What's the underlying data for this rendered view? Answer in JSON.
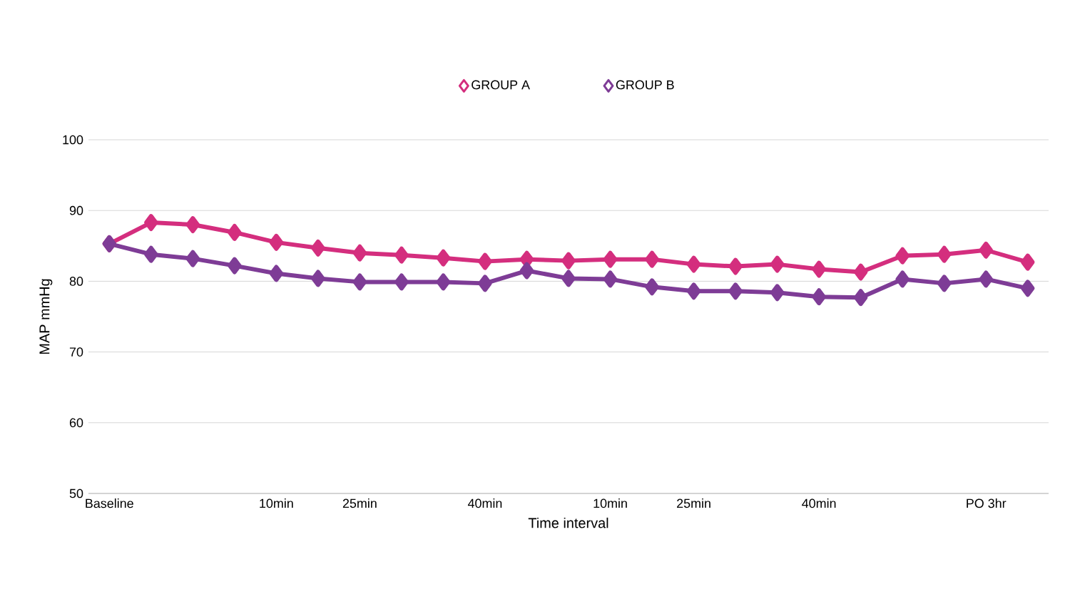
{
  "chart_data": {
    "type": "line",
    "xlabel": "Time interval",
    "ylabel": "MAP mmHg",
    "categories": [
      "Baseline",
      null,
      null,
      null,
      "10min",
      null,
      "25min",
      null,
      null,
      "40min",
      null,
      null,
      "10min",
      null,
      "25min",
      null,
      null,
      "40min",
      null,
      null,
      null,
      "PO 3hr",
      null
    ],
    "series": [
      {
        "name": "GROUP A",
        "color": "#d42e7e",
        "values": [
          85.3,
          88.3,
          88.0,
          86.9,
          85.5,
          84.7,
          84.0,
          83.7,
          83.3,
          82.8,
          83.1,
          82.9,
          83.1,
          83.1,
          82.4,
          82.1,
          82.4,
          81.7,
          81.3,
          83.6,
          83.8,
          84.4,
          82.7
        ]
      },
      {
        "name": "GROUP B",
        "color": "#7e3c96",
        "values": [
          85.3,
          83.8,
          83.2,
          82.2,
          81.1,
          80.4,
          79.9,
          79.9,
          79.9,
          79.7,
          81.5,
          80.4,
          80.3,
          79.2,
          78.6,
          78.6,
          78.4,
          77.8,
          77.7,
          80.3,
          79.7,
          80.3,
          79.0
        ]
      }
    ],
    "ylim": [
      50,
      100
    ],
    "yticks": [
      50,
      60,
      70,
      80,
      90,
      100
    ],
    "grid": "y",
    "legend": "top",
    "marker": "diamond",
    "line_style": "solid"
  }
}
